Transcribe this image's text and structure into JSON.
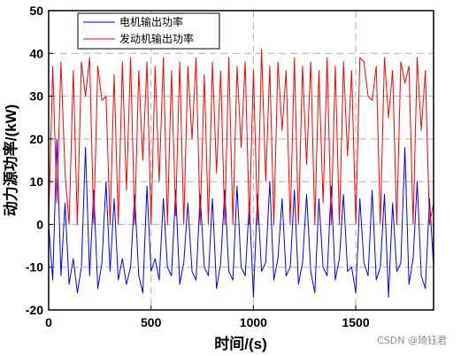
{
  "chart_data": {
    "type": "line",
    "xlabel": "时间/(s)",
    "ylabel": "动力源功率/(kW)",
    "xlim": [
      0,
      1880
    ],
    "ylim": [
      -20,
      50
    ],
    "xticks": [
      0,
      500,
      1000,
      1500
    ],
    "yticks": [
      -20,
      -10,
      0,
      10,
      20,
      30,
      40,
      50
    ],
    "grid": true,
    "legend_position": "top-left",
    "series": [
      {
        "name": "电机输出功率",
        "color": "#0000ff",
        "x": [
          0,
          20,
          40,
          60,
          80,
          100,
          120,
          140,
          160,
          180,
          200,
          220,
          240,
          260,
          280,
          300,
          320,
          340,
          360,
          380,
          400,
          420,
          440,
          460,
          480,
          500,
          520,
          540,
          560,
          580,
          600,
          620,
          640,
          660,
          680,
          700,
          720,
          740,
          760,
          780,
          800,
          820,
          840,
          860,
          880,
          900,
          920,
          940,
          960,
          980,
          1000,
          1020,
          1040,
          1060,
          1080,
          1100,
          1120,
          1140,
          1160,
          1180,
          1200,
          1220,
          1240,
          1260,
          1280,
          1300,
          1320,
          1340,
          1360,
          1380,
          1400,
          1420,
          1440,
          1460,
          1480,
          1500,
          1520,
          1540,
          1560,
          1580,
          1600,
          1620,
          1640,
          1660,
          1680,
          1700,
          1720,
          1740,
          1760,
          1780,
          1800,
          1820,
          1840,
          1860,
          1880
        ],
        "values": [
          0,
          -13,
          20,
          -12,
          5,
          -14,
          -8,
          -16,
          -10,
          18,
          -12,
          8,
          -15,
          -9,
          10,
          -11,
          6,
          -13,
          -8,
          -14,
          -10,
          7,
          -12,
          -16,
          9,
          -11,
          -8,
          -13,
          6,
          -10,
          -12,
          8,
          -14,
          -9,
          5,
          -11,
          -13,
          7,
          -10,
          -12,
          6,
          -15,
          -9,
          8,
          -11,
          -13,
          9,
          -10,
          -12,
          5,
          -17,
          7,
          -11,
          -9,
          10,
          -13,
          -8,
          6,
          -12,
          -10,
          8,
          -14,
          -9,
          7,
          -11,
          -16,
          6,
          -10,
          -12,
          9,
          -13,
          -8,
          7,
          -11,
          -10,
          -16,
          6,
          -9,
          -12,
          8,
          -13,
          -10,
          7,
          -17,
          5,
          -11,
          -9,
          18,
          -14,
          -8,
          10,
          -12,
          -15,
          6,
          -10
        ]
      },
      {
        "name": "发动机输出功率",
        "color": "#ff0000",
        "x": [
          0,
          20,
          40,
          60,
          80,
          100,
          120,
          140,
          160,
          180,
          200,
          220,
          240,
          260,
          280,
          300,
          320,
          340,
          360,
          380,
          400,
          420,
          440,
          460,
          480,
          500,
          520,
          540,
          560,
          580,
          600,
          620,
          640,
          660,
          680,
          700,
          720,
          740,
          760,
          780,
          800,
          820,
          840,
          860,
          880,
          900,
          920,
          940,
          960,
          980,
          1000,
          1020,
          1040,
          1060,
          1080,
          1100,
          1120,
          1140,
          1160,
          1180,
          1200,
          1220,
          1240,
          1260,
          1280,
          1300,
          1320,
          1340,
          1360,
          1380,
          1400,
          1420,
          1440,
          1460,
          1480,
          1500,
          1520,
          1540,
          1560,
          1580,
          1600,
          1620,
          1640,
          1660,
          1680,
          1700,
          1720,
          1740,
          1760,
          1780,
          1800,
          1820,
          1840,
          1860,
          1880
        ],
        "values": [
          0,
          37,
          5,
          38,
          12,
          0,
          36,
          0,
          38,
          30,
          39,
          0,
          37,
          29,
          30,
          0,
          35,
          0,
          38,
          8,
          39,
          0,
          36,
          15,
          38,
          0,
          37,
          10,
          39,
          0,
          36,
          2,
          38,
          0,
          37,
          20,
          39,
          0,
          35,
          0,
          38,
          12,
          36,
          0,
          39,
          0,
          37,
          18,
          38,
          0,
          36,
          0,
          41,
          10,
          37,
          0,
          38,
          22,
          36,
          0,
          39,
          0,
          37,
          14,
          38,
          0,
          36,
          5,
          39,
          0,
          37,
          0,
          38,
          16,
          36,
          0,
          39,
          38,
          30,
          29,
          37,
          0,
          39,
          25,
          36,
          0,
          38,
          33,
          37,
          0,
          39,
          22,
          36,
          0,
          5
        ]
      }
    ]
  },
  "watermark": "CSDN @琦钰君"
}
